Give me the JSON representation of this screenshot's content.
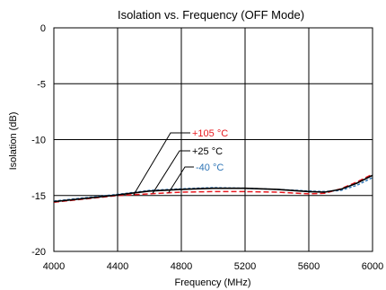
{
  "chart_data": {
    "type": "line",
    "title": "Isolation vs. Frequency (OFF Mode)",
    "xlabel": "Frequency (MHz)",
    "ylabel": "Isolation (dB)",
    "xlim": [
      4000,
      6000
    ],
    "ylim": [
      -20,
      0
    ],
    "xticks": [
      4000,
      4400,
      4800,
      5200,
      5600,
      6000
    ],
    "yticks": [
      0,
      -5,
      -10,
      -15,
      -20
    ],
    "xtick_labels": [
      "4000",
      "4400",
      "4800",
      "5200",
      "5600",
      "6000"
    ],
    "ytick_labels": [
      "0",
      "-5",
      "-10",
      "-15",
      "-20"
    ],
    "grid": true,
    "x": [
      4000,
      4200,
      4400,
      4600,
      4800,
      5000,
      5200,
      5400,
      5600,
      5700,
      5800,
      5900,
      6000
    ],
    "series": [
      {
        "name": "+105 °C",
        "color": "#e8191f",
        "style": "dashed",
        "values": [
          -15.6,
          -15.3,
          -15.0,
          -14.85,
          -14.7,
          -14.65,
          -14.65,
          -14.7,
          -14.85,
          -14.8,
          -14.4,
          -13.8,
          -13.1
        ]
      },
      {
        "name": "+25 °C",
        "color": "#000000",
        "style": "solid",
        "values": [
          -15.55,
          -15.25,
          -14.95,
          -14.6,
          -14.45,
          -14.35,
          -14.35,
          -14.45,
          -14.65,
          -14.7,
          -14.45,
          -13.9,
          -13.2
        ]
      },
      {
        "name": "-40 °C",
        "color": "#2e75b6",
        "style": "dashed",
        "values": [
          -15.5,
          -15.2,
          -14.9,
          -14.55,
          -14.4,
          -14.3,
          -14.35,
          -14.45,
          -14.6,
          -14.65,
          -14.55,
          -14.1,
          -13.4
        ]
      }
    ],
    "legend": "inline callouts pointing to curves"
  }
}
